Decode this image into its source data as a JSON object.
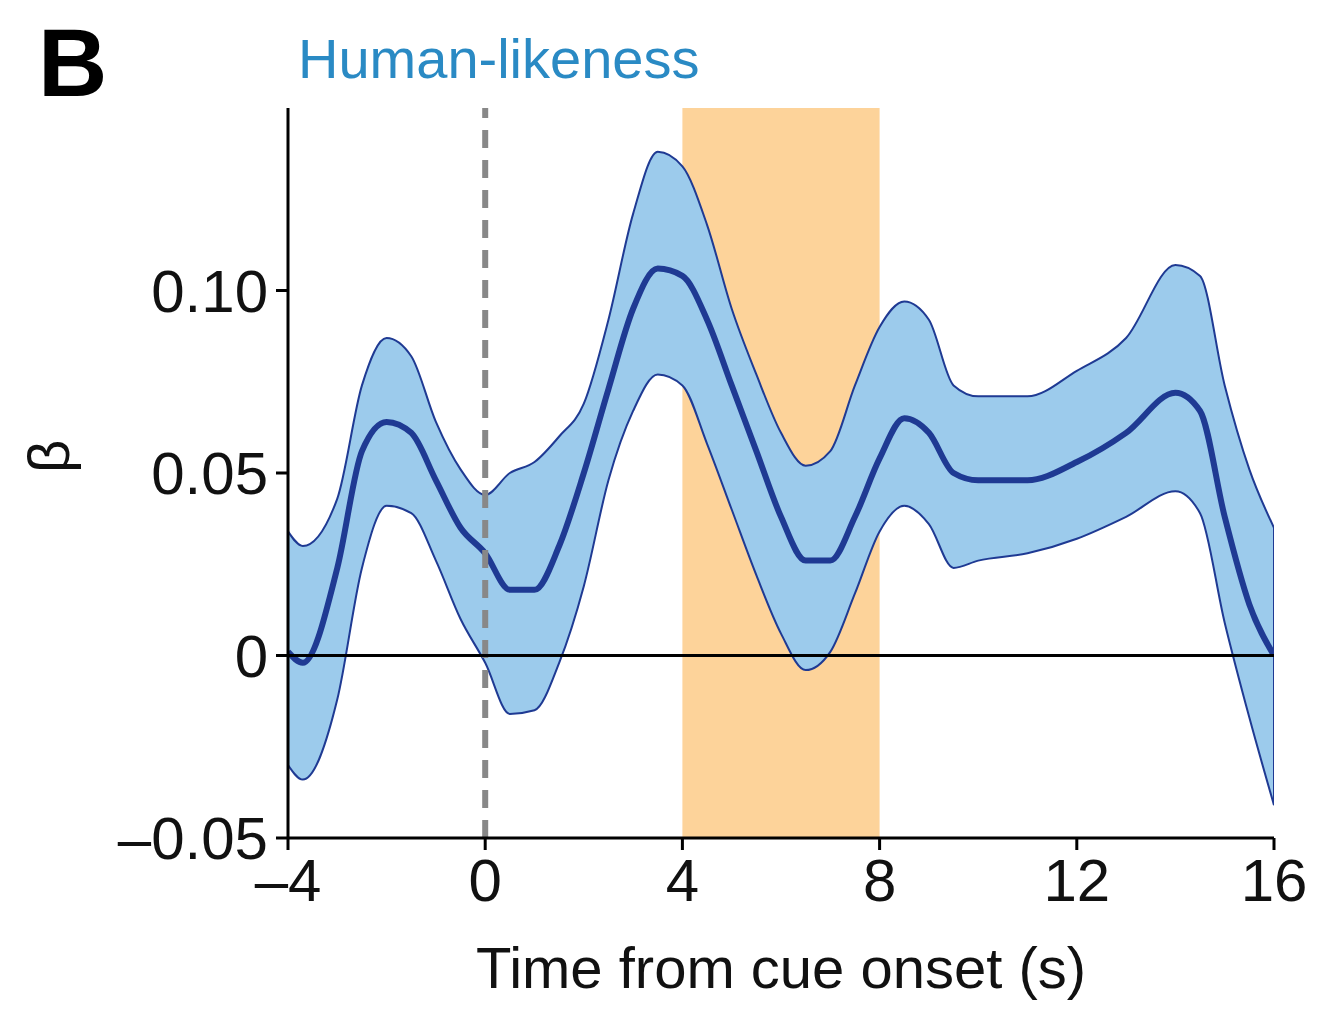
{
  "chart_data": {
    "type": "line",
    "title": "Human-likeness",
    "xlabel": "Time from cue onset (s)",
    "ylabel": "β",
    "annotations": [
      "B"
    ],
    "x": [
      -4,
      -3.7,
      -3,
      -2.5,
      -2,
      -1.5,
      -1,
      -0.5,
      0,
      0.5,
      1,
      1.5,
      2,
      2.5,
      3,
      3.5,
      4,
      4.5,
      5,
      5.5,
      6,
      6.5,
      7,
      7.5,
      8,
      8.5,
      9,
      9.5,
      10,
      11,
      12,
      13,
      14,
      14.5,
      15,
      15.5,
      16
    ],
    "series": [
      {
        "color": "#1f3a93",
        "values": [
          0.001,
          -0.002,
          0.024,
          0.056,
          0.064,
          0.061,
          0.048,
          0.035,
          0.028,
          0.018,
          0.018,
          0.03,
          0.05,
          0.073,
          0.095,
          0.106,
          0.104,
          0.092,
          0.074,
          0.056,
          0.038,
          0.026,
          0.026,
          0.038,
          0.054,
          0.065,
          0.061,
          0.05,
          0.048,
          0.048,
          0.053,
          0.061,
          0.072,
          0.067,
          0.038,
          0.014,
          0.0
        ],
        "upper": [
          0.034,
          0.03,
          0.043,
          0.074,
          0.087,
          0.082,
          0.064,
          0.051,
          0.044,
          0.05,
          0.053,
          0.06,
          0.069,
          0.092,
          0.121,
          0.138,
          0.134,
          0.118,
          0.095,
          0.077,
          0.061,
          0.052,
          0.056,
          0.074,
          0.09,
          0.097,
          0.092,
          0.074,
          0.071,
          0.071,
          0.078,
          0.087,
          0.107,
          0.104,
          0.074,
          0.051,
          0.035
        ],
        "lower": [
          -0.03,
          -0.034,
          -0.012,
          0.024,
          0.041,
          0.039,
          0.026,
          0.01,
          -0.002,
          -0.016,
          -0.015,
          -0.002,
          0.019,
          0.048,
          0.067,
          0.077,
          0.074,
          0.058,
          0.04,
          0.022,
          0.006,
          -0.004,
          0.001,
          0.017,
          0.034,
          0.041,
          0.036,
          0.024,
          0.026,
          0.028,
          0.032,
          0.038,
          0.045,
          0.039,
          0.009,
          -0.017,
          -0.041
        ]
      }
    ],
    "xlim": [
      -4,
      16
    ],
    "xticks": [
      {
        "value": -4,
        "label": "–4"
      },
      0,
      4,
      8,
      12,
      16
    ],
    "ylim": [
      -0.05,
      0.15
    ],
    "yticks": [
      {
        "value": -0.05,
        "label": "–0.05"
      },
      0,
      0.05,
      {
        "value": 0.1,
        "label": "0.10"
      }
    ],
    "ref_lines": [
      {
        "axis": "x",
        "value": 0,
        "color": "#888888",
        "line_style": "dashed"
      },
      {
        "axis": "y",
        "value": 0,
        "color": "#000000",
        "line_style": "solid"
      }
    ],
    "bands": [
      {
        "axis": "x",
        "from": 4,
        "to": 8,
        "color": "#fdd39a"
      }
    ],
    "grid": false,
    "legend": false,
    "marker": "none",
    "line_style": "solid"
  }
}
